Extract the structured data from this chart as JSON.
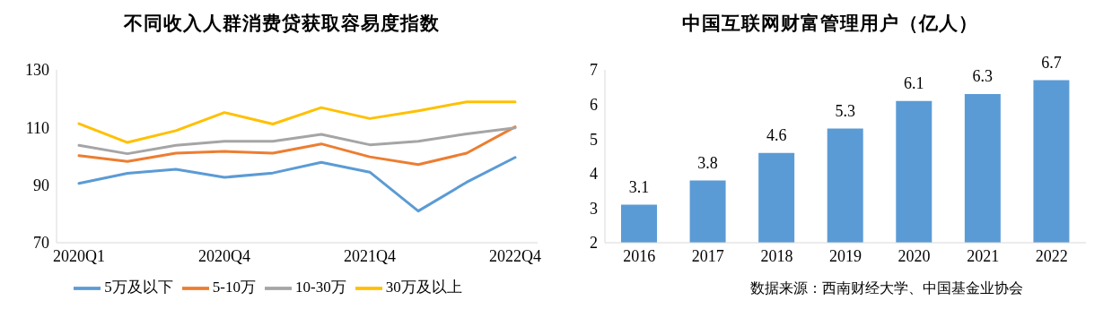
{
  "chart_data": [
    {
      "type": "line",
      "title": "不同收入人群消费贷获取容易度指数",
      "categories": [
        "2020Q1",
        null,
        null,
        "2020Q4",
        null,
        null,
        "2021Q4",
        null,
        null,
        "2022Q4"
      ],
      "series": [
        {
          "name": "5万及以下",
          "color": "#5b9bd5",
          "values": [
            90.6,
            94.1,
            95.5,
            92.7,
            94.2,
            97.9,
            94.5,
            81.0,
            91.0,
            99.6
          ]
        },
        {
          "name": "5-10万",
          "color": "#ed7d31",
          "values": [
            100.2,
            98.2,
            101.1,
            101.7,
            101.1,
            104.3,
            99.8,
            97.1,
            101.1,
            110.2
          ]
        },
        {
          "name": "10-30万",
          "color": "#a5a5a5",
          "values": [
            103.8,
            100.9,
            103.8,
            105.2,
            105.2,
            107.6,
            104.0,
            105.2,
            107.8,
            109.9
          ]
        },
        {
          "name": "30万及以上",
          "color": "#ffc000",
          "values": [
            111.3,
            104.8,
            108.9,
            115.2,
            111.2,
            116.9,
            113.1,
            115.8,
            118.9,
            118.9
          ]
        }
      ],
      "ylim": [
        70,
        130
      ],
      "yticks": [
        70,
        90,
        110,
        130
      ],
      "grid": false,
      "legend": "bottom",
      "marker": "none",
      "line_style": "solid"
    },
    {
      "type": "bar",
      "title": "中国互联网财富管理用户（亿人）",
      "categories": [
        "2016",
        "2017",
        "2018",
        "2019",
        "2020",
        "2021",
        "2022"
      ],
      "values": [
        3.1,
        3.8,
        4.6,
        5.3,
        6.1,
        6.3,
        6.7
      ],
      "color": "#5b9bd5",
      "ylim": [
        2,
        7
      ],
      "yticks": [
        2,
        3,
        4,
        5,
        6,
        7
      ],
      "grid": false,
      "data_labels": true,
      "legend": false,
      "annotations": [
        "数据来源：西南财经大学、中国基金业协会"
      ]
    }
  ]
}
